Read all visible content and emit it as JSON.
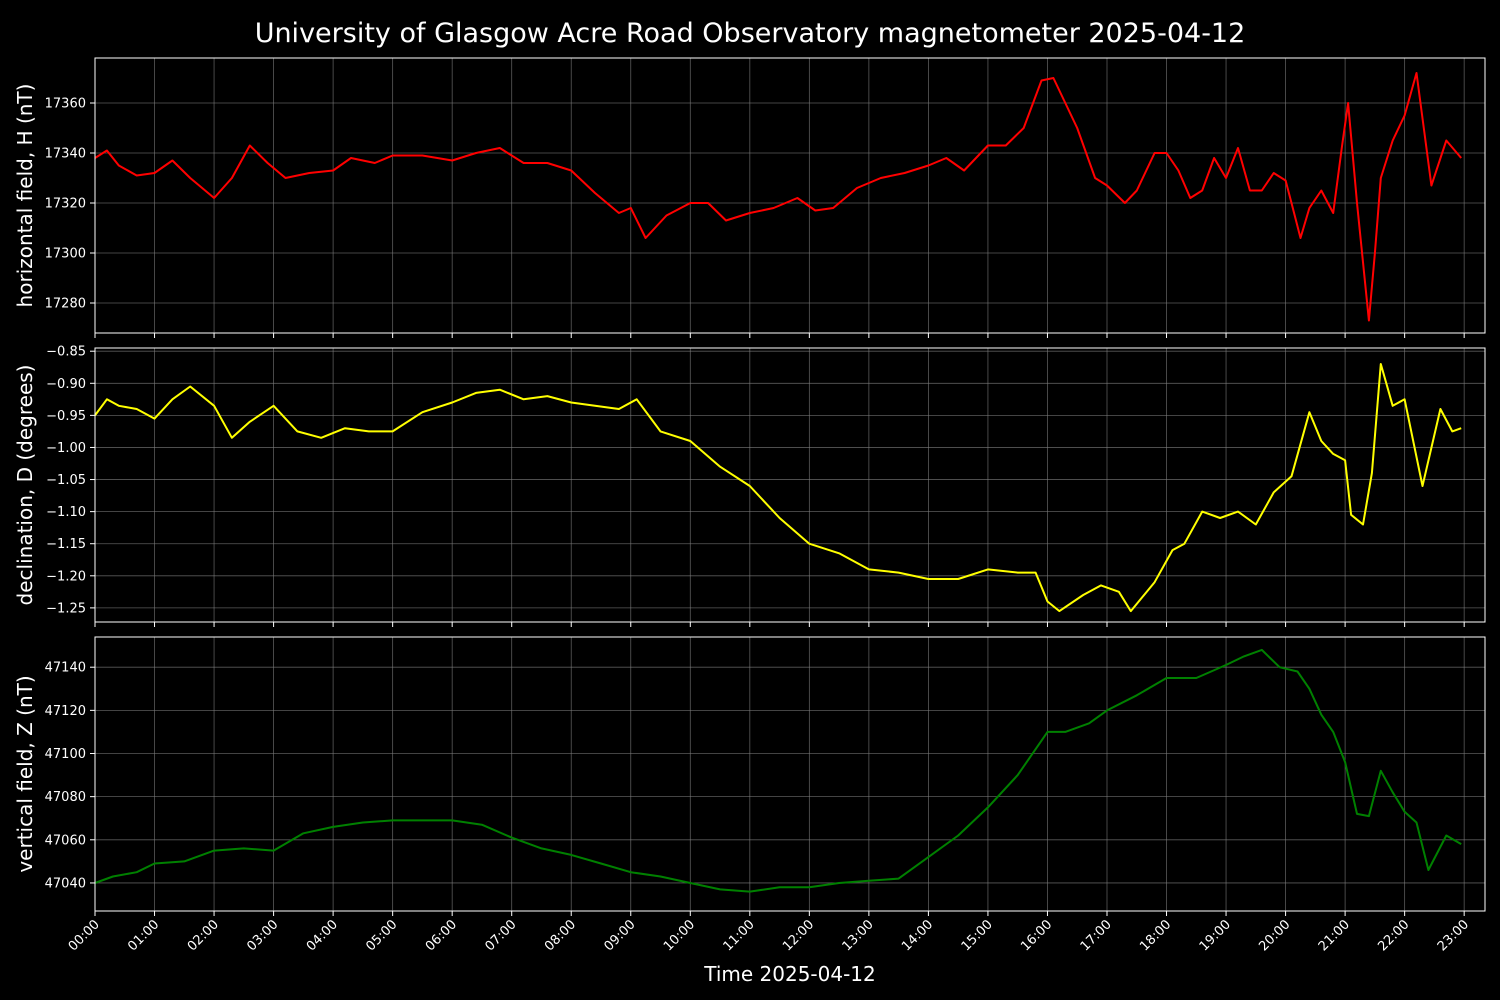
{
  "title": "University of Glasgow Acre Road Observatory magnetometer 2025-04-12",
  "xlabel": "Time 2025-04-12",
  "chart_data": [
    {
      "type": "line",
      "ylabel": "horizontal field, H (nT)",
      "color": "#ff0000",
      "xlim": [
        0,
        23.35
      ],
      "ylim": [
        17268,
        17378
      ],
      "yticks": [
        17280,
        17300,
        17320,
        17340,
        17360
      ],
      "ytick_labels": [
        "17280",
        "17300",
        "17320",
        "17340",
        "17360"
      ],
      "grid": true,
      "x": [
        0,
        0.2,
        0.4,
        0.7,
        1.0,
        1.3,
        1.6,
        2.0,
        2.3,
        2.6,
        2.9,
        3.2,
        3.6,
        4.0,
        4.3,
        4.7,
        5.0,
        5.5,
        6.0,
        6.4,
        6.8,
        7.2,
        7.6,
        8.0,
        8.4,
        8.8,
        9.0,
        9.25,
        9.6,
        10.0,
        10.3,
        10.6,
        11.0,
        11.4,
        11.8,
        12.1,
        12.4,
        12.8,
        13.2,
        13.6,
        14.0,
        14.3,
        14.6,
        14.8,
        15.0,
        15.3,
        15.6,
        15.9,
        16.1,
        16.3,
        16.5,
        16.8,
        17.0,
        17.3,
        17.5,
        17.8,
        18.0,
        18.2,
        18.4,
        18.6,
        18.8,
        19.0,
        19.2,
        19.4,
        19.6,
        19.8,
        20.0,
        20.1,
        20.25,
        20.4,
        20.6,
        20.8,
        20.95,
        21.05,
        21.2,
        21.4,
        21.5,
        21.6,
        21.8,
        22.0,
        22.2,
        22.45,
        22.7,
        22.95
      ],
      "y": [
        17338,
        17341,
        17335,
        17331,
        17332,
        17337,
        17330,
        17322,
        17330,
        17343,
        17336,
        17330,
        17332,
        17333,
        17338,
        17336,
        17339,
        17339,
        17337,
        17340,
        17342,
        17336,
        17336,
        17333,
        17324,
        17316,
        17318,
        17306,
        17315,
        17320,
        17320,
        17313,
        17316,
        17318,
        17322,
        17317,
        17318,
        17326,
        17330,
        17332,
        17335,
        17338,
        17333,
        17338,
        17343,
        17343,
        17350,
        17369,
        17370,
        17360,
        17350,
        17330,
        17327,
        17320,
        17325,
        17340,
        17340,
        17333,
        17322,
        17325,
        17338,
        17330,
        17342,
        17325,
        17325,
        17332,
        17329,
        17320,
        17306,
        17318,
        17325,
        17316,
        17343,
        17360,
        17320,
        17273,
        17300,
        17330,
        17345,
        17355,
        17372,
        17327,
        17345,
        17338
      ]
    },
    {
      "type": "line",
      "ylabel": "declination, D (degrees)",
      "color": "#ffff00",
      "xlim": [
        0,
        23.35
      ],
      "ylim": [
        -1.272,
        -0.845
      ],
      "yticks": [
        -1.25,
        -1.2,
        -1.15,
        -1.1,
        -1.05,
        -1.0,
        -0.95,
        -0.9,
        -0.85
      ],
      "ytick_labels": [
        "−1.25",
        "−1.20",
        "−1.15",
        "−1.10",
        "−1.05",
        "−1.00",
        "−0.95",
        "−0.90",
        "−0.85"
      ],
      "grid": true,
      "x": [
        0,
        0.2,
        0.4,
        0.7,
        1.0,
        1.3,
        1.6,
        2.0,
        2.3,
        2.6,
        3.0,
        3.4,
        3.8,
        4.2,
        4.6,
        5.0,
        5.5,
        6.0,
        6.4,
        6.8,
        7.2,
        7.6,
        8.0,
        8.4,
        8.8,
        9.1,
        9.5,
        10.0,
        10.5,
        11.0,
        11.5,
        12.0,
        12.5,
        13.0,
        13.5,
        14.0,
        14.5,
        15.0,
        15.5,
        15.8,
        16.0,
        16.2,
        16.6,
        16.9,
        17.2,
        17.4,
        17.8,
        18.1,
        18.3,
        18.6,
        18.9,
        19.2,
        19.5,
        19.8,
        20.1,
        20.4,
        20.6,
        20.8,
        21.0,
        21.1,
        21.3,
        21.45,
        21.6,
        21.8,
        22.0,
        22.3,
        22.6,
        22.8,
        22.95
      ],
      "y": [
        -0.95,
        -0.925,
        -0.935,
        -0.94,
        -0.955,
        -0.925,
        -0.905,
        -0.935,
        -0.985,
        -0.96,
        -0.935,
        -0.975,
        -0.985,
        -0.97,
        -0.975,
        -0.975,
        -0.945,
        -0.93,
        -0.915,
        -0.91,
        -0.925,
        -0.92,
        -0.93,
        -0.935,
        -0.94,
        -0.925,
        -0.975,
        -0.99,
        -1.03,
        -1.06,
        -1.11,
        -1.15,
        -1.165,
        -1.19,
        -1.195,
        -1.205,
        -1.205,
        -1.19,
        -1.195,
        -1.195,
        -1.24,
        -1.255,
        -1.23,
        -1.215,
        -1.225,
        -1.255,
        -1.21,
        -1.16,
        -1.15,
        -1.1,
        -1.11,
        -1.1,
        -1.12,
        -1.07,
        -1.045,
        -0.945,
        -0.99,
        -1.01,
        -1.02,
        -1.105,
        -1.12,
        -1.04,
        -0.87,
        -0.935,
        -0.925,
        -1.06,
        -0.94,
        -0.975,
        -0.97
      ]
    },
    {
      "type": "line",
      "ylabel": "vertical field, Z (nT)",
      "color": "#008000",
      "xlim": [
        0,
        23.35
      ],
      "ylim": [
        47027,
        47154
      ],
      "yticks": [
        47040,
        47060,
        47080,
        47100,
        47120,
        47140
      ],
      "ytick_labels": [
        "47040",
        "47060",
        "47080",
        "47100",
        "47120",
        "47140"
      ],
      "grid": true,
      "x": [
        0,
        0.3,
        0.7,
        1.0,
        1.5,
        2.0,
        2.5,
        3.0,
        3.5,
        4.0,
        4.5,
        5.0,
        5.5,
        6.0,
        6.5,
        7.0,
        7.5,
        8.0,
        8.5,
        9.0,
        9.5,
        10.0,
        10.5,
        11.0,
        11.5,
        12.0,
        12.5,
        13.0,
        13.5,
        14.0,
        14.5,
        15.0,
        15.5,
        16.0,
        16.3,
        16.7,
        17.0,
        17.5,
        18.0,
        18.5,
        19.0,
        19.3,
        19.6,
        19.9,
        20.2,
        20.4,
        20.6,
        20.8,
        21.0,
        21.2,
        21.4,
        21.6,
        21.8,
        22.0,
        22.2,
        22.4,
        22.7,
        22.95
      ],
      "y": [
        47040,
        47043,
        47045,
        47049,
        47050,
        47055,
        47056,
        47055,
        47063,
        47066,
        47068,
        47069,
        47069,
        47069,
        47067,
        47061,
        47056,
        47053,
        47049,
        47045,
        47043,
        47040,
        47037,
        47036,
        47038,
        47038,
        47040,
        47041,
        47042,
        47052,
        47062,
        47075,
        47090,
        47110,
        47110,
        47114,
        47120,
        47127,
        47135,
        47135,
        47141,
        47145,
        47148,
        47140,
        47138,
        47130,
        47118,
        47110,
        47096,
        47072,
        47071,
        47092,
        47082,
        47073,
        47068,
        47046,
        47062,
        47058
      ]
    }
  ],
  "xticks": [
    0,
    1,
    2,
    3,
    4,
    5,
    6,
    7,
    8,
    9,
    10,
    11,
    12,
    13,
    14,
    15,
    16,
    17,
    18,
    19,
    20,
    21,
    22,
    23
  ],
  "xtick_labels": [
    "00:00",
    "01:00",
    "02:00",
    "03:00",
    "04:00",
    "05:00",
    "06:00",
    "07:00",
    "08:00",
    "09:00",
    "10:00",
    "11:00",
    "12:00",
    "13:00",
    "14:00",
    "15:00",
    "16:00",
    "17:00",
    "18:00",
    "19:00",
    "20:00",
    "21:00",
    "22:00",
    "23:00"
  ],
  "colors": {
    "background": "#000000",
    "axes": "#ffffff",
    "grid": "#808080"
  }
}
